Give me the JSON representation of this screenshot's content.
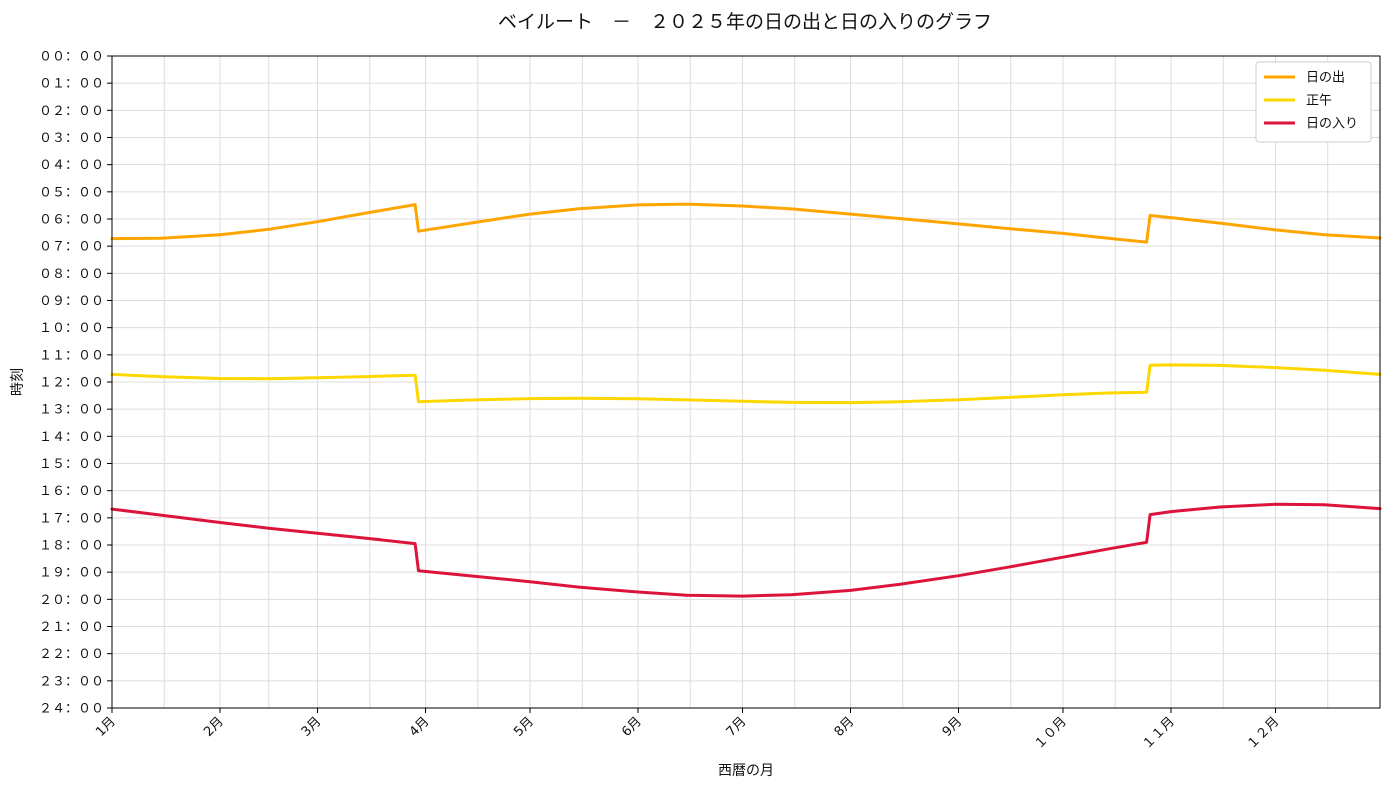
{
  "chart_data": {
    "type": "line",
    "title": "ベイルート　－　２０２５年の日の出と日の入りのグラフ",
    "xlabel": "西暦の月",
    "ylabel": "時刻",
    "x_ticks": [
      {
        "label": "1月",
        "date": "2025-01-01"
      },
      {
        "label": "2月",
        "date": "2025-02-01"
      },
      {
        "label": "3月",
        "date": "2025-03-01"
      },
      {
        "label": "4月",
        "date": "2025-04-01"
      },
      {
        "label": "5月",
        "date": "2025-05-01"
      },
      {
        "label": "6月",
        "date": "2025-06-01"
      },
      {
        "label": "7月",
        "date": "2025-07-01"
      },
      {
        "label": "8月",
        "date": "2025-08-01"
      },
      {
        "label": "9月",
        "date": "2025-09-01"
      },
      {
        "label": "１０月",
        "date": "2025-10-01"
      },
      {
        "label": "１１月",
        "date": "2025-11-01"
      },
      {
        "label": "１２月",
        "date": "2025-12-01"
      }
    ],
    "xlim": [
      "2025-01-01",
      "2025-12-31"
    ],
    "y_ticks": [
      {
        "label": "００：００",
        "value": 0
      },
      {
        "label": "０１：００",
        "value": 1
      },
      {
        "label": "０２：００",
        "value": 2
      },
      {
        "label": "０３：００",
        "value": 3
      },
      {
        "label": "０４：００",
        "value": 4
      },
      {
        "label": "０５：００",
        "value": 5
      },
      {
        "label": "０６：００",
        "value": 6
      },
      {
        "label": "０７：００",
        "value": 7
      },
      {
        "label": "０８：００",
        "value": 8
      },
      {
        "label": "０９：００",
        "value": 9
      },
      {
        "label": "１０：００",
        "value": 10
      },
      {
        "label": "１１：００",
        "value": 11
      },
      {
        "label": "１２：００",
        "value": 12
      },
      {
        "label": "１３：００",
        "value": 13
      },
      {
        "label": "１４：００",
        "value": 14
      },
      {
        "label": "１５：００",
        "value": 15
      },
      {
        "label": "１６：００",
        "value": 16
      },
      {
        "label": "１７：００",
        "value": 17
      },
      {
        "label": "１８：００",
        "value": 18
      },
      {
        "label": "１９：００",
        "value": 19
      },
      {
        "label": "２０：００",
        "value": 20
      },
      {
        "label": "２１：００",
        "value": 21
      },
      {
        "label": "２２：００",
        "value": 22
      },
      {
        "label": "２３：００",
        "value": 23
      },
      {
        "label": "２４：００",
        "value": 24
      }
    ],
    "ylim": [
      0,
      24
    ],
    "y_inverted": true,
    "grid": true,
    "legend_position": "top-right",
    "series": [
      {
        "name": "日の出",
        "color": "#FFA500",
        "points": [
          [
            "2025-01-01",
            6.72
          ],
          [
            "2025-01-15",
            6.71
          ],
          [
            "2025-02-01",
            6.58
          ],
          [
            "2025-02-15",
            6.38
          ],
          [
            "2025-03-01",
            6.1
          ],
          [
            "2025-03-15",
            5.78
          ],
          [
            "2025-03-29",
            5.47
          ],
          [
            "2025-03-30",
            6.45
          ],
          [
            "2025-04-15",
            6.13
          ],
          [
            "2025-05-01",
            5.82
          ],
          [
            "2025-05-15",
            5.62
          ],
          [
            "2025-06-01",
            5.48
          ],
          [
            "2025-06-15",
            5.45
          ],
          [
            "2025-07-01",
            5.52
          ],
          [
            "2025-07-15",
            5.63
          ],
          [
            "2025-08-01",
            5.82
          ],
          [
            "2025-08-15",
            5.98
          ],
          [
            "2025-09-01",
            6.18
          ],
          [
            "2025-09-15",
            6.35
          ],
          [
            "2025-10-01",
            6.53
          ],
          [
            "2025-10-15",
            6.72
          ],
          [
            "2025-10-25",
            6.85
          ],
          [
            "2025-10-26",
            5.87
          ],
          [
            "2025-11-01",
            5.95
          ],
          [
            "2025-11-15",
            6.15
          ],
          [
            "2025-12-01",
            6.4
          ],
          [
            "2025-12-15",
            6.58
          ],
          [
            "2025-12-31",
            6.7
          ]
        ]
      },
      {
        "name": "正午",
        "color": "#FFD700",
        "points": [
          [
            "2025-01-01",
            11.72
          ],
          [
            "2025-01-15",
            11.8
          ],
          [
            "2025-02-01",
            11.87
          ],
          [
            "2025-02-15",
            11.88
          ],
          [
            "2025-03-01",
            11.84
          ],
          [
            "2025-03-15",
            11.8
          ],
          [
            "2025-03-29",
            11.75
          ],
          [
            "2025-03-30",
            12.73
          ],
          [
            "2025-04-15",
            12.66
          ],
          [
            "2025-05-01",
            12.61
          ],
          [
            "2025-05-15",
            12.6
          ],
          [
            "2025-06-01",
            12.62
          ],
          [
            "2025-06-15",
            12.66
          ],
          [
            "2025-07-01",
            12.71
          ],
          [
            "2025-07-15",
            12.75
          ],
          [
            "2025-08-01",
            12.76
          ],
          [
            "2025-08-15",
            12.73
          ],
          [
            "2025-09-01",
            12.65
          ],
          [
            "2025-09-15",
            12.57
          ],
          [
            "2025-10-01",
            12.47
          ],
          [
            "2025-10-15",
            12.4
          ],
          [
            "2025-10-25",
            12.38
          ],
          [
            "2025-10-26",
            11.38
          ],
          [
            "2025-11-01",
            11.37
          ],
          [
            "2025-11-15",
            11.39
          ],
          [
            "2025-12-01",
            11.47
          ],
          [
            "2025-12-15",
            11.57
          ],
          [
            "2025-12-31",
            11.72
          ]
        ]
      },
      {
        "name": "日の入り",
        "color": "#DC143C",
        "points": [
          [
            "2025-01-01",
            16.68
          ],
          [
            "2025-01-15",
            16.9
          ],
          [
            "2025-02-01",
            17.17
          ],
          [
            "2025-02-15",
            17.38
          ],
          [
            "2025-03-01",
            17.57
          ],
          [
            "2025-03-15",
            17.75
          ],
          [
            "2025-03-29",
            17.95
          ],
          [
            "2025-03-30",
            18.95
          ],
          [
            "2025-04-15",
            19.15
          ],
          [
            "2025-05-01",
            19.35
          ],
          [
            "2025-05-15",
            19.55
          ],
          [
            "2025-06-01",
            19.73
          ],
          [
            "2025-06-15",
            19.85
          ],
          [
            "2025-07-01",
            19.88
          ],
          [
            "2025-07-15",
            19.83
          ],
          [
            "2025-08-01",
            19.67
          ],
          [
            "2025-08-15",
            19.45
          ],
          [
            "2025-09-01",
            19.13
          ],
          [
            "2025-09-15",
            18.82
          ],
          [
            "2025-10-01",
            18.45
          ],
          [
            "2025-10-15",
            18.12
          ],
          [
            "2025-10-25",
            17.9
          ],
          [
            "2025-10-26",
            16.88
          ],
          [
            "2025-11-01",
            16.77
          ],
          [
            "2025-11-15",
            16.6
          ],
          [
            "2025-12-01",
            16.5
          ],
          [
            "2025-12-15",
            16.52
          ],
          [
            "2025-12-31",
            16.66
          ]
        ]
      }
    ]
  }
}
